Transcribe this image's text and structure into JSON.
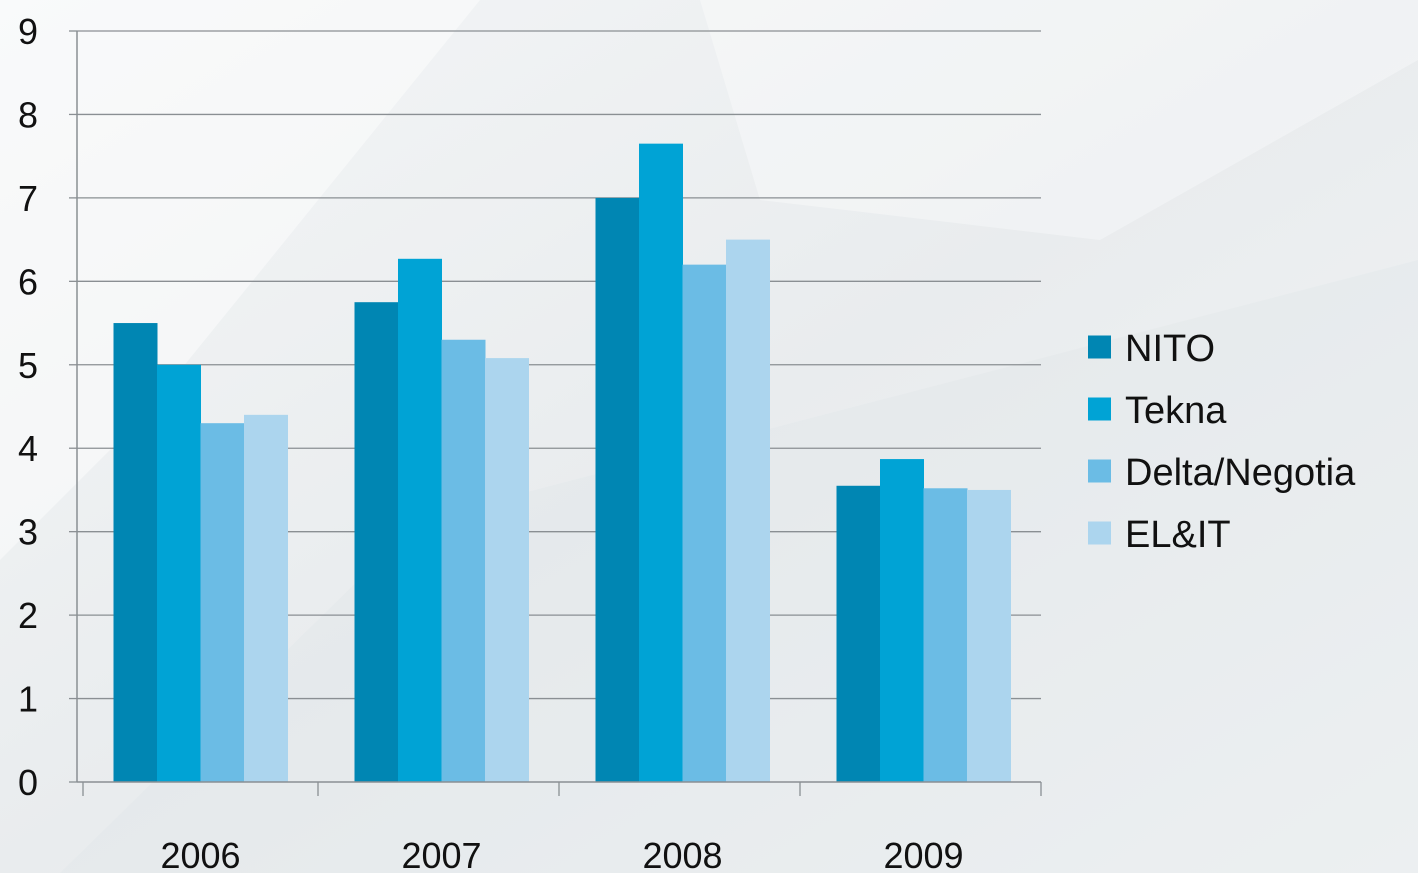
{
  "chart_data": {
    "type": "bar",
    "title": "",
    "xlabel": "",
    "ylabel": "",
    "categories": [
      "2006",
      "2007",
      "2008",
      "2009"
    ],
    "series": [
      {
        "name": "NITO",
        "color": "#0086b3",
        "values": [
          5.5,
          5.75,
          7.0,
          3.55
        ]
      },
      {
        "name": "Tekna",
        "color": "#00a3d5",
        "values": [
          5.0,
          6.27,
          7.65,
          3.87
        ]
      },
      {
        "name": "Delta/Negotia",
        "color": "#6bbce5",
        "values": [
          4.3,
          5.3,
          6.2,
          3.52
        ]
      },
      {
        "name": "EL&IT",
        "color": "#acd5ee",
        "values": [
          4.4,
          5.08,
          6.5,
          3.5
        ]
      }
    ],
    "ylim": [
      0,
      9
    ],
    "yticks": [
      "0",
      "1",
      "2",
      "3",
      "4",
      "5",
      "6",
      "7",
      "8",
      "9"
    ],
    "grid": true,
    "legend_position": "right"
  }
}
